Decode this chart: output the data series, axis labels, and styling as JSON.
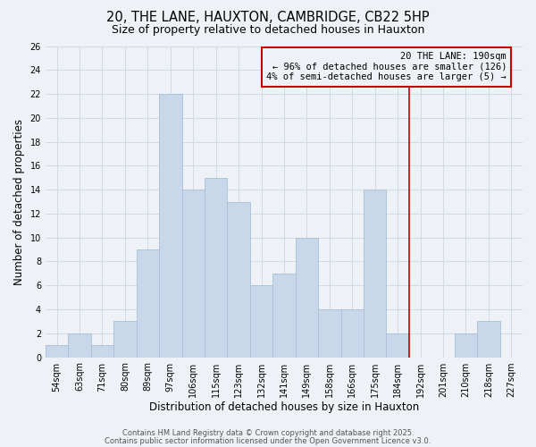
{
  "title": "20, THE LANE, HAUXTON, CAMBRIDGE, CB22 5HP",
  "subtitle": "Size of property relative to detached houses in Hauxton",
  "xlabel": "Distribution of detached houses by size in Hauxton",
  "ylabel": "Number of detached properties",
  "bin_labels": [
    "54sqm",
    "63sqm",
    "71sqm",
    "80sqm",
    "89sqm",
    "97sqm",
    "106sqm",
    "115sqm",
    "123sqm",
    "132sqm",
    "141sqm",
    "149sqm",
    "158sqm",
    "166sqm",
    "175sqm",
    "184sqm",
    "192sqm",
    "201sqm",
    "210sqm",
    "218sqm",
    "227sqm"
  ],
  "bar_values": [
    1,
    2,
    1,
    3,
    9,
    22,
    14,
    15,
    13,
    6,
    7,
    10,
    4,
    4,
    14,
    2,
    0,
    0,
    2,
    3,
    0
  ],
  "bar_color": "#c8d8ea",
  "bar_edge_color": "#a8c0d8",
  "grid_color": "#d0dae4",
  "vline_x_index": 16,
  "vline_color": "#cc0000",
  "annotation_text": "20 THE LANE: 190sqm\n← 96% of detached houses are smaller (126)\n4% of semi-detached houses are larger (5) →",
  "annotation_box_color": "#cc0000",
  "ylim": [
    0,
    26
  ],
  "yticks": [
    0,
    2,
    4,
    6,
    8,
    10,
    12,
    14,
    16,
    18,
    20,
    22,
    24,
    26
  ],
  "footer1": "Contains HM Land Registry data © Crown copyright and database right 2025.",
  "footer2": "Contains public sector information licensed under the Open Government Licence v3.0.",
  "background_color": "#eef2f7",
  "title_fontsize": 10.5,
  "subtitle_fontsize": 9,
  "axis_label_fontsize": 8.5,
  "tick_fontsize": 7,
  "annotation_fontsize": 7.5,
  "footer_fontsize": 6
}
